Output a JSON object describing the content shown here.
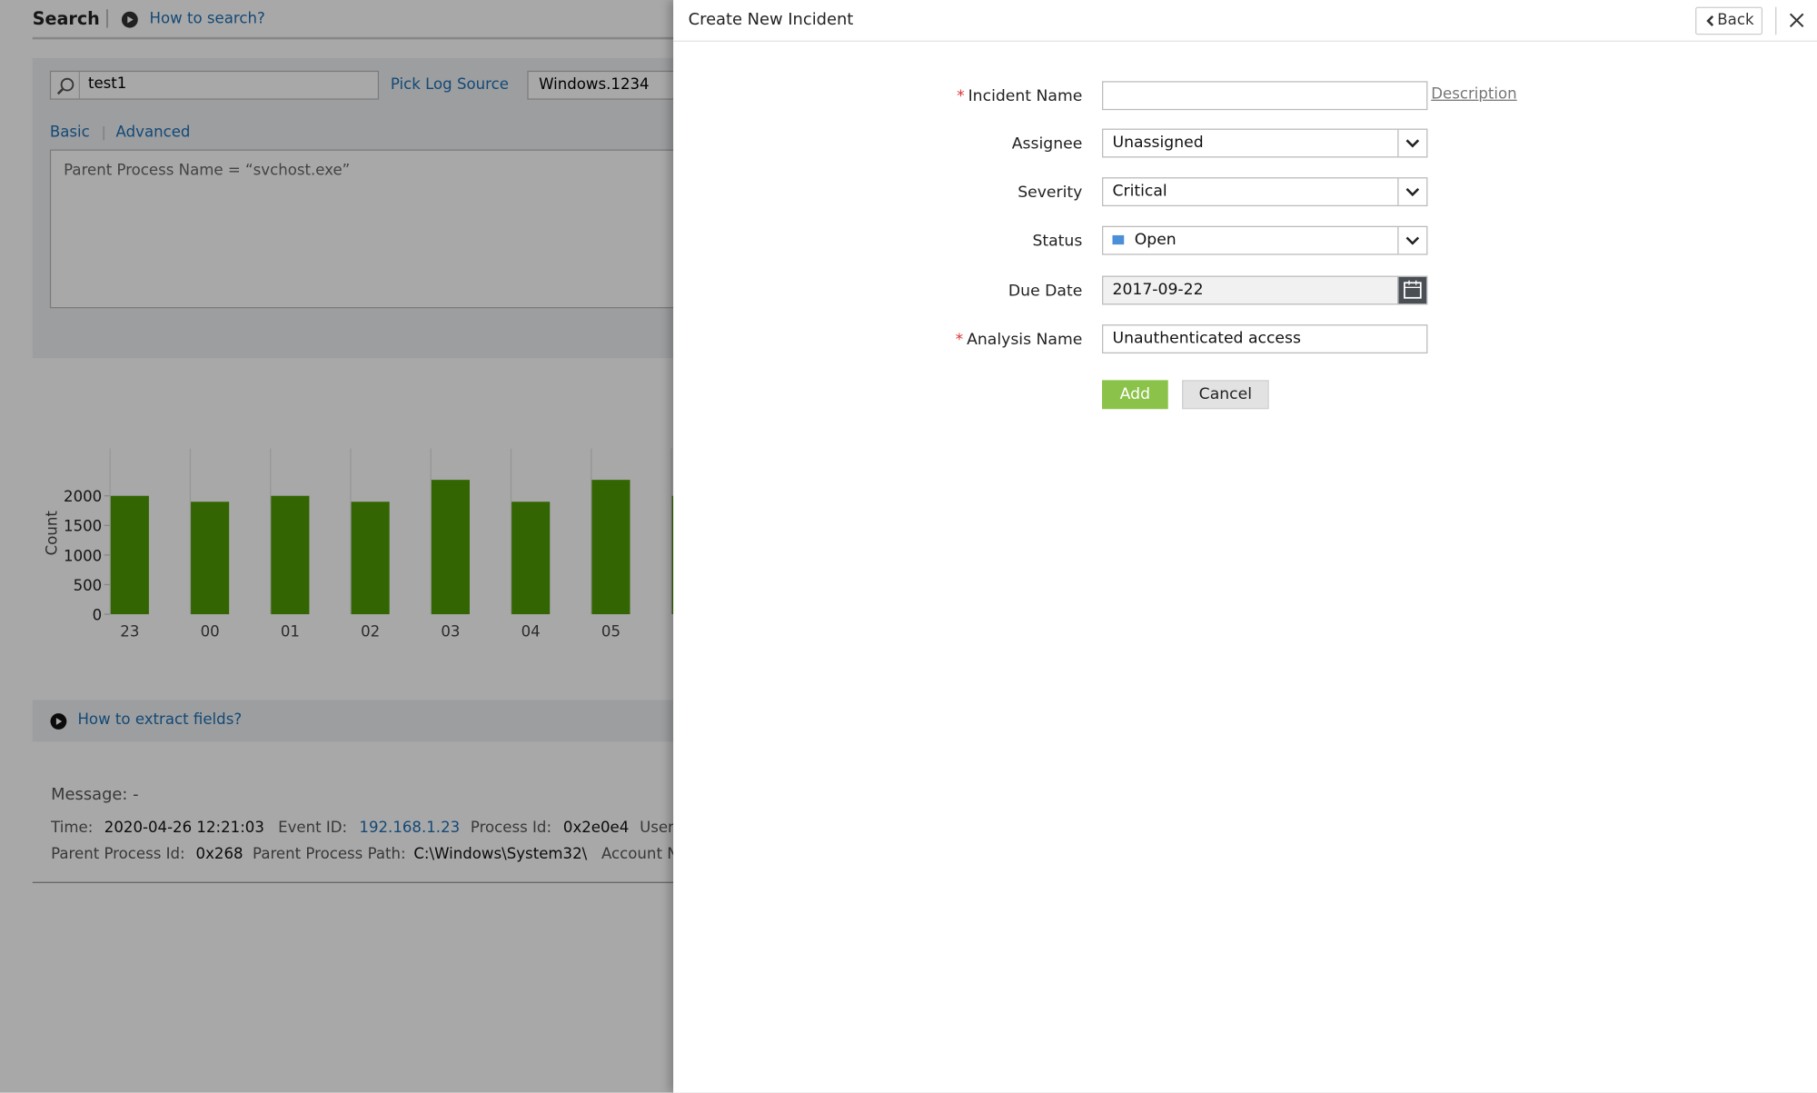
{
  "search": {
    "title": "Search",
    "help": "How to search?",
    "query": "test1",
    "pick_log_source": "Pick Log Source",
    "log_source": "Windows.1234",
    "tabs": [
      "Basic",
      "Advanced"
    ],
    "query_text": "Parent Process Name = “svchost.exe”"
  },
  "chart_data": {
    "type": "bar",
    "y_label": "Count",
    "categories": [
      "23",
      "00",
      "01",
      "02",
      "03",
      "04",
      "05",
      null
    ],
    "values": [
      2000,
      1900,
      2000,
      1900,
      2270,
      1900,
      2270,
      2000
    ],
    "color": "#4e9a06",
    "ylim": [
      0,
      2800
    ],
    "yticks": [
      0,
      500,
      1000,
      1500,
      2000
    ],
    "grid": true
  },
  "extract_help": "How to extract fields?",
  "message": {
    "title": "Message: -",
    "rows": [
      [
        [
          "Time:",
          "2020-04-26 12:21:03"
        ],
        [
          "Event ID:",
          "192.168.1.23"
        ],
        [
          "Process Id:",
          "0x2e0e4"
        ],
        [
          "User",
          ""
        ]
      ],
      [
        [
          "Parent Process Id:",
          "0x268"
        ],
        [
          "Parent Process Path:",
          "C:\\Windows\\System32\\"
        ],
        [
          "Account N",
          ""
        ]
      ]
    ]
  },
  "modal": {
    "title": "Create New Incident",
    "back": "Back",
    "description": "Description",
    "fields": [
      {
        "label": "Incident Name",
        "value": "",
        "required": true,
        "kind": "text"
      },
      {
        "label": "Assignee",
        "value": "Unassigned",
        "required": false,
        "kind": "select"
      },
      {
        "label": "Severity",
        "value": "Critical",
        "required": false,
        "kind": "select"
      },
      {
        "label": "Status",
        "value": "Open",
        "required": false,
        "kind": "status"
      },
      {
        "label": "Due Date",
        "value": "2017-09-22",
        "required": false,
        "kind": "date"
      },
      {
        "label": "Analysis Name",
        "value": "Unauthenticated access",
        "required": true,
        "kind": "text"
      }
    ],
    "add": "Add",
    "cancel": "Cancel"
  }
}
